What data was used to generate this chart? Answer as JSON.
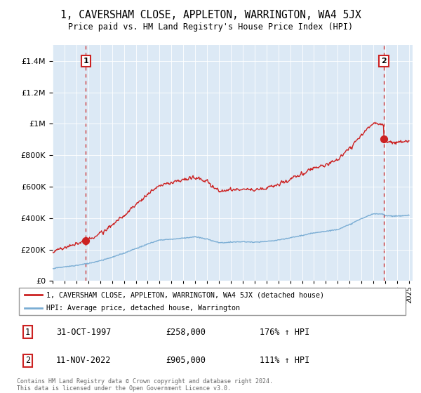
{
  "title": "1, CAVERSHAM CLOSE, APPLETON, WARRINGTON, WA4 5JX",
  "subtitle": "Price paid vs. HM Land Registry's House Price Index (HPI)",
  "legend_line1": "1, CAVERSHAM CLOSE, APPLETON, WARRINGTON, WA4 5JX (detached house)",
  "legend_line2": "HPI: Average price, detached house, Warrington",
  "sale1_date": "31-OCT-1997",
  "sale1_price": 258000,
  "sale1_label": "176% ↑ HPI",
  "sale2_date": "11-NOV-2022",
  "sale2_price": 905000,
  "sale2_label": "111% ↑ HPI",
  "footnote": "Contains HM Land Registry data © Crown copyright and database right 2024.\nThis data is licensed under the Open Government Licence v3.0.",
  "hpi_color": "#7aadd4",
  "price_color": "#cc2222",
  "vline_color": "#cc2222",
  "ylim_max": 1500000,
  "ylim_min": 0,
  "background_color": "#ffffff",
  "plot_bg_color": "#dce9f5",
  "grid_color": "#ffffff"
}
